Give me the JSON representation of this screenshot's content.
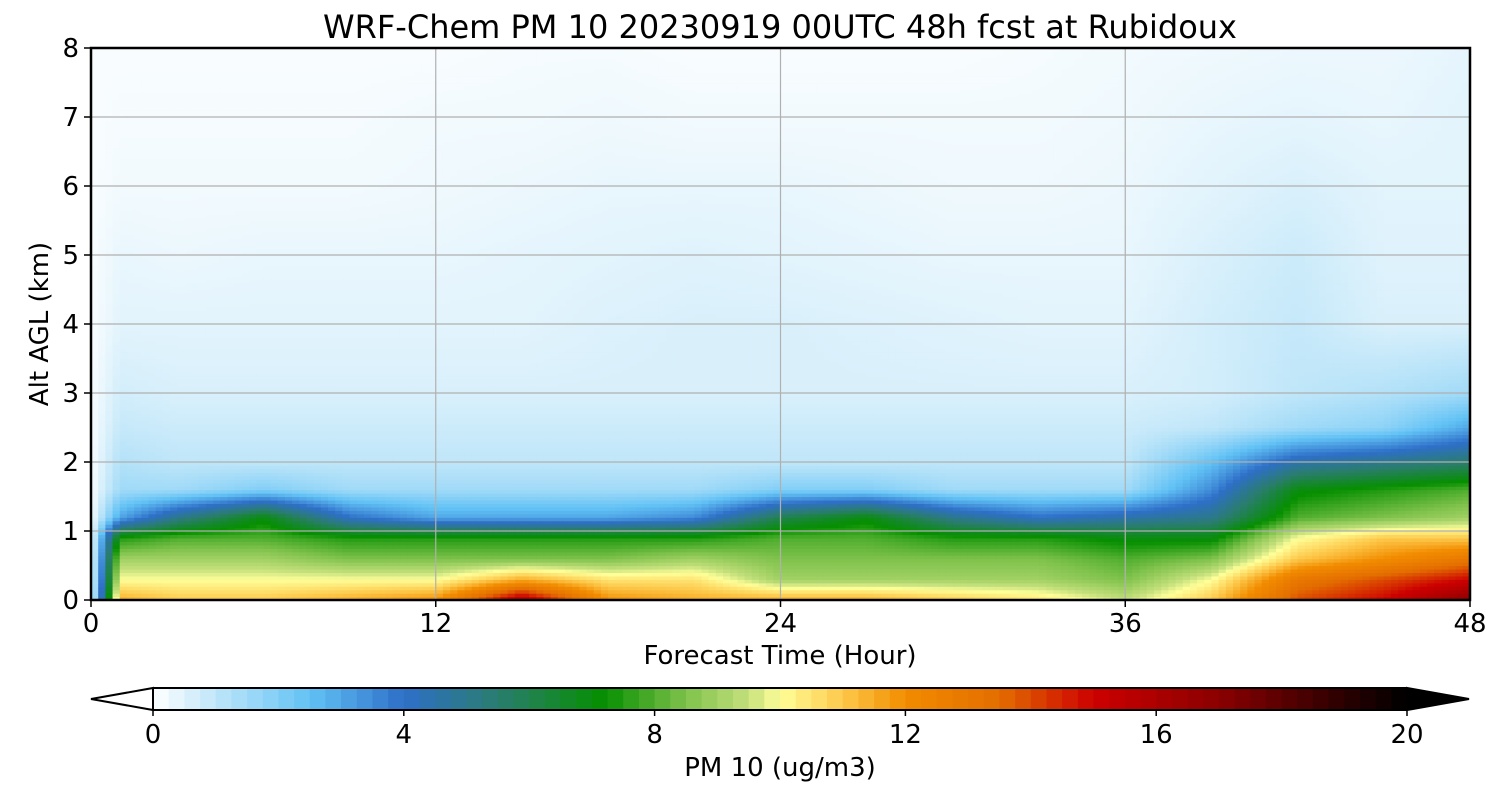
{
  "chart_data": {
    "type": "heatmap",
    "title": "WRF-Chem PM 10  20230919 00UTC 48h fcst at Rubidoux",
    "xlabel": "Forecast Time (Hour)",
    "ylabel": "Alt AGL (km)",
    "xlim": [
      0,
      48
    ],
    "ylim": [
      0,
      8
    ],
    "x_ticks": [
      0,
      12,
      24,
      36,
      48
    ],
    "y_ticks": [
      0,
      1,
      2,
      3,
      4,
      5,
      6,
      7,
      8
    ],
    "grid": true,
    "z_hours": [
      0,
      1,
      3,
      6,
      9,
      12,
      15,
      18,
      21,
      24,
      27,
      30,
      33,
      36,
      39,
      42,
      45,
      48
    ],
    "z_altitudes_km": [
      0,
      0.3,
      0.6,
      0.9,
      1.2,
      1.6,
      2.0,
      2.5,
      3.0,
      4.0,
      5.0,
      6.0,
      7.0,
      8.0
    ],
    "z_values": [
      [
        0.1,
        11.5,
        11.0,
        11.0,
        11.5,
        12.0,
        16.0,
        12.0,
        11.5,
        11.5,
        11.5,
        11.0,
        10.5,
        9.5,
        11.0,
        14.0,
        15.0,
        17.0
      ],
      [
        0.1,
        10.0,
        10.0,
        10.0,
        10.0,
        10.0,
        11.5,
        10.5,
        10.5,
        9.0,
        9.0,
        9.0,
        9.0,
        8.5,
        10.0,
        13.0,
        14.0,
        15.0
      ],
      [
        0.1,
        9.0,
        9.0,
        9.0,
        8.5,
        8.5,
        8.5,
        8.5,
        9.0,
        8.5,
        8.5,
        8.5,
        8.5,
        8.0,
        8.5,
        11.0,
        12.0,
        13.0
      ],
      [
        0.1,
        7.5,
        8.0,
        8.0,
        7.5,
        7.5,
        7.5,
        7.5,
        7.5,
        8.0,
        8.0,
        7.5,
        7.5,
        7.0,
        7.0,
        10.0,
        11.0,
        11.0
      ],
      [
        0.1,
        3.0,
        5.0,
        7.0,
        4.0,
        3.0,
        3.0,
        3.0,
        3.5,
        6.0,
        7.0,
        5.0,
        4.0,
        4.5,
        5.0,
        8.0,
        8.5,
        9.0
      ],
      [
        0.1,
        1.5,
        1.5,
        2.0,
        1.5,
        1.5,
        1.5,
        1.5,
        1.5,
        2.0,
        2.0,
        1.5,
        1.5,
        1.5,
        3.5,
        7.0,
        7.5,
        8.0
      ],
      [
        0.1,
        1.2,
        1.0,
        1.0,
        1.0,
        1.0,
        1.0,
        1.0,
        1.0,
        1.0,
        1.0,
        1.0,
        1.0,
        1.0,
        2.5,
        4.5,
        5.0,
        5.5
      ],
      [
        0.1,
        0.9,
        0.8,
        0.8,
        0.8,
        0.8,
        0.8,
        0.8,
        0.8,
        0.8,
        0.8,
        0.8,
        0.8,
        0.8,
        1.0,
        1.5,
        1.8,
        3.0
      ],
      [
        0.1,
        0.7,
        0.6,
        0.6,
        0.6,
        0.6,
        0.6,
        0.6,
        0.6,
        0.6,
        0.6,
        0.6,
        0.6,
        0.6,
        0.7,
        1.0,
        1.2,
        1.5
      ],
      [
        0.1,
        0.45,
        0.45,
        0.45,
        0.45,
        0.45,
        0.45,
        0.55,
        0.6,
        0.6,
        0.55,
        0.5,
        0.45,
        0.45,
        0.7,
        0.9,
        0.6,
        0.6
      ],
      [
        0.1,
        0.35,
        0.3,
        0.35,
        0.35,
        0.35,
        0.4,
        0.45,
        0.5,
        0.45,
        0.4,
        0.35,
        0.35,
        0.35,
        0.6,
        0.8,
        0.5,
        0.5
      ],
      [
        0.1,
        0.2,
        0.2,
        0.2,
        0.2,
        0.25,
        0.3,
        0.35,
        0.35,
        0.35,
        0.3,
        0.25,
        0.25,
        0.3,
        0.45,
        0.6,
        0.45,
        0.45
      ],
      [
        0.1,
        0.15,
        0.15,
        0.15,
        0.15,
        0.2,
        0.2,
        0.25,
        0.2,
        0.2,
        0.2,
        0.2,
        0.2,
        0.25,
        0.35,
        0.4,
        0.35,
        0.45
      ],
      [
        0.1,
        0.1,
        0.1,
        0.1,
        0.1,
        0.1,
        0.15,
        0.15,
        0.1,
        0.1,
        0.1,
        0.1,
        0.15,
        0.2,
        0.25,
        0.3,
        0.3,
        0.4
      ]
    ],
    "colorbar": {
      "label": "PM 10  (ug/m3)",
      "min": 0,
      "max": 20,
      "ticks": [
        0,
        4,
        8,
        12,
        16,
        20
      ],
      "extend": "both",
      "placement": "bottom",
      "colors": [
        "#ffffff",
        "#bfe6f9",
        "#62c2f5",
        "#2e6fc8",
        "#2a7d6e",
        "#068f00",
        "#7fc24c",
        "#c4e07c",
        "#ffff99",
        "#fdc84a",
        "#f28c00",
        "#e36d00",
        "#cc0000",
        "#8b0000",
        "#2a0000",
        "#000000"
      ],
      "color_stops": [
        0,
        1,
        2.5,
        4,
        5.5,
        7.2,
        8.5,
        9.5,
        10,
        11,
        12,
        13.5,
        15,
        17,
        19,
        20
      ]
    }
  }
}
